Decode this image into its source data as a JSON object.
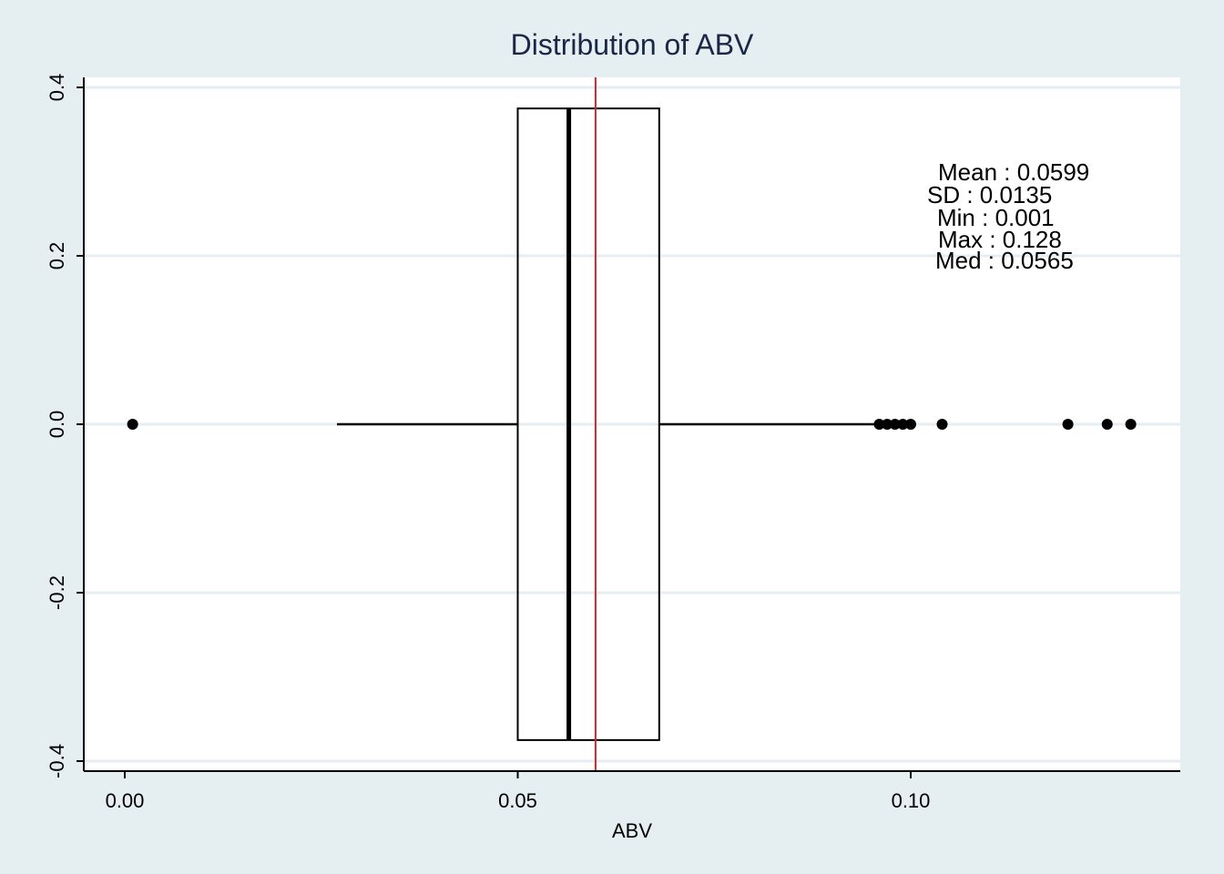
{
  "chart_data": {
    "type": "box",
    "title": "Distribution of ABV",
    "xlabel": "ABV",
    "ylabel": "",
    "xlim": [
      -0.005,
      0.134
    ],
    "ylim": [
      -0.41,
      0.41
    ],
    "x_ticks": [
      {
        "value": 0.0,
        "label": "0.00"
      },
      {
        "value": 0.05,
        "label": "0.05"
      },
      {
        "value": 0.1,
        "label": "0.10"
      }
    ],
    "y_ticks": [
      {
        "value": 0.4,
        "label": "0.4"
      },
      {
        "value": 0.2,
        "label": "0.2"
      },
      {
        "value": 0.0,
        "label": "0.0"
      },
      {
        "value": -0.2,
        "label": "-0.2"
      },
      {
        "value": -0.4,
        "label": "-0.4"
      }
    ],
    "grid": true,
    "box": {
      "q1": 0.05,
      "median": 0.0565,
      "q3": 0.068,
      "whisker_low": 0.027,
      "whisker_high": 0.096,
      "box_y_low": -0.375,
      "box_y_high": 0.375,
      "y_center": 0.0
    },
    "outliers": [
      0.001,
      0.096,
      0.097,
      0.098,
      0.099,
      0.1,
      0.104,
      0.12,
      0.125,
      0.128
    ],
    "mean_line": 0.0599,
    "stats_annotation": [
      "Mean : 0.0599",
      "SD : 0.0135",
      "Min : 0.001",
      "Max : 0.128",
      "Med : 0.0565"
    ],
    "colors": {
      "background": "#e5eef0",
      "plot_area": "#ffffff",
      "grid": "#e5eef0",
      "box": "#000000",
      "mean_line": "#d62728",
      "title": "#1a2746"
    }
  }
}
